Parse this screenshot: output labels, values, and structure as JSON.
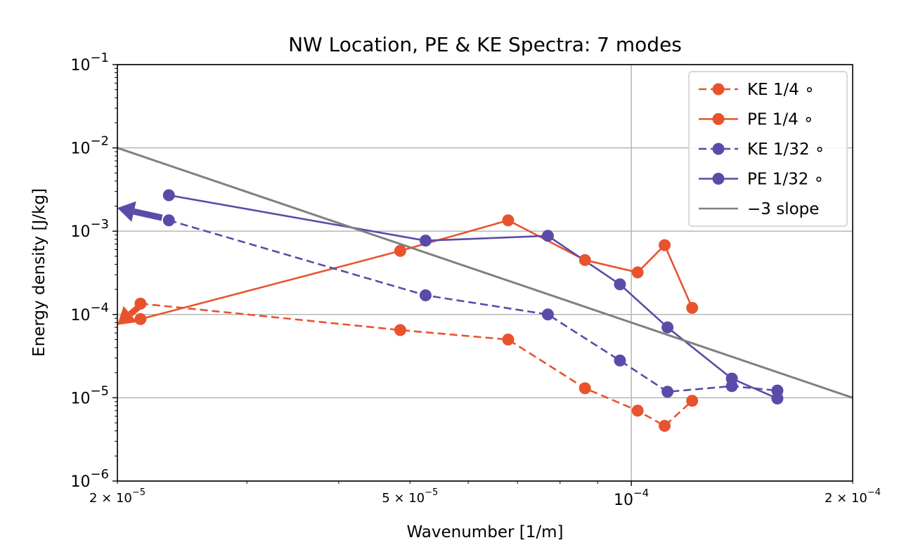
{
  "chart_data": {
    "type": "line",
    "title": "NW Location, PE & KE Spectra: 7 modes",
    "xlabel": "Wavenumber [1/m]",
    "ylabel": "Energy density [J/kg]",
    "xscale": "log",
    "yscale": "log",
    "xlim": [
      2e-05,
      0.0002
    ],
    "ylim": [
      1e-06,
      0.1
    ],
    "grid": true,
    "legend_position": "top-right",
    "x_tick_labels": [
      {
        "value": 2e-05,
        "base": "2",
        "exp": "−5"
      },
      {
        "value": 5e-05,
        "base": "5",
        "exp": "−5"
      },
      {
        "value": 0.0001,
        "base": "",
        "exp": "−4"
      },
      {
        "value": 0.0002,
        "base": "2",
        "exp": "−4"
      }
    ],
    "y_tick_labels": [
      {
        "value": 0.1,
        "exp": "−1"
      },
      {
        "value": 0.01,
        "exp": "−2"
      },
      {
        "value": 0.001,
        "exp": "−3"
      },
      {
        "value": 0.0001,
        "exp": "−4"
      },
      {
        "value": 1e-05,
        "exp": "−5"
      },
      {
        "value": 1e-06,
        "exp": "−6"
      }
    ],
    "series": [
      {
        "name": "KE 1/4 ∘",
        "color": "#e8532e",
        "dashed": true,
        "x": [
          2.15e-05,
          4.85e-05,
          6.8e-05,
          8.65e-05,
          0.000102,
          0.000111,
          0.000121
        ],
        "y": [
          0.000135,
          6.5e-05,
          5e-05,
          1.3e-05,
          7e-06,
          4.6e-06,
          9.2e-06
        ]
      },
      {
        "name": "PE 1/4 ∘",
        "color": "#e8532e",
        "dashed": false,
        "x": [
          2.15e-05,
          4.85e-05,
          6.8e-05,
          8.65e-05,
          0.000102,
          0.000111,
          0.000121
        ],
        "y": [
          8.8e-05,
          0.00058,
          0.00135,
          0.00045,
          0.00032,
          0.00068,
          0.00012
        ]
      },
      {
        "name": "KE 1/32 ∘",
        "color": "#5b4ba8",
        "dashed": true,
        "x": [
          2.35e-05,
          5.25e-05,
          7.7e-05,
          9.65e-05,
          0.000112,
          0.000137,
          0.000158
        ],
        "y": [
          0.00135,
          0.00017,
          0.0001,
          2.8e-05,
          1.18e-05,
          1.38e-05,
          1.22e-05
        ]
      },
      {
        "name": "PE 1/32 ∘",
        "color": "#5b4ba8",
        "dashed": false,
        "x": [
          2.35e-05,
          5.25e-05,
          7.7e-05,
          9.65e-05,
          0.000112,
          0.000137,
          0.000158
        ],
        "y": [
          0.0027,
          0.00077,
          0.00088,
          0.00023,
          7e-05,
          1.7e-05,
          9.8e-06
        ]
      },
      {
        "name": "−3 slope",
        "color": "#808080",
        "dashed": false,
        "markers": false,
        "x": [
          2e-05,
          0.0002
        ],
        "y": [
          0.01,
          1e-05
        ]
      }
    ],
    "annotations": [
      {
        "type": "arrow",
        "color": "#5b4ba8",
        "from": [
          2.3e-05,
          0.00145
        ],
        "to": [
          2e-05,
          0.0019
        ]
      },
      {
        "type": "arrow",
        "color": "#e8532e",
        "from": [
          2.15e-05,
          0.000128
        ],
        "to": [
          2e-05,
          7.5e-05
        ]
      }
    ]
  }
}
